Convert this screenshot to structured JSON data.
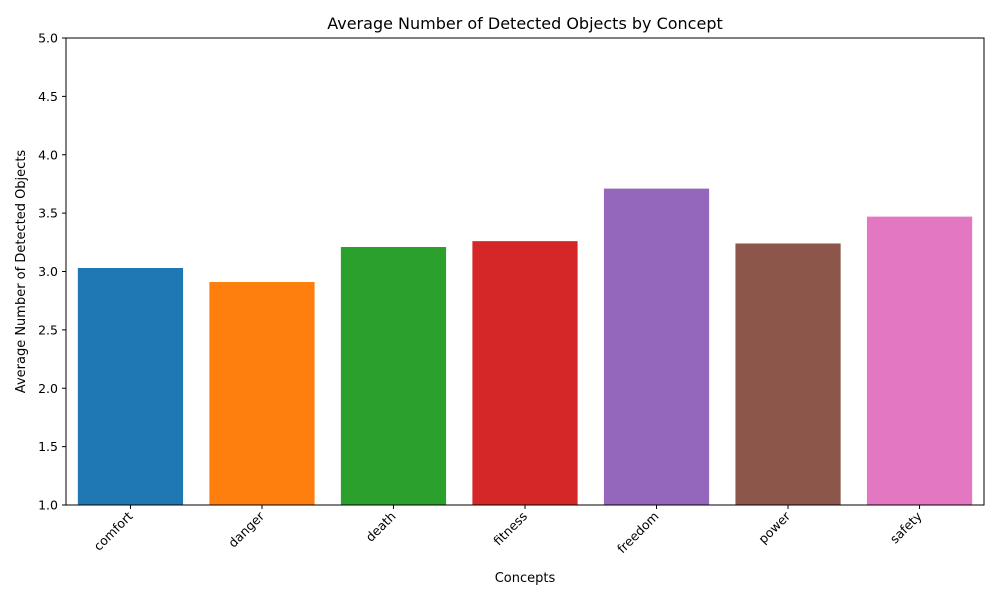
{
  "chart_data": {
    "type": "bar",
    "title": "Average Number of Detected Objects by Concept",
    "xlabel": "Concepts",
    "ylabel": "Average Number of Detected Objects",
    "ylim": [
      1.0,
      5.0
    ],
    "yticks": [
      "1.0",
      "1.5",
      "2.0",
      "2.5",
      "3.0",
      "3.5",
      "4.0",
      "4.5",
      "5.0"
    ],
    "grid": false,
    "legend": "none",
    "categories": [
      "comfort",
      "danger",
      "death",
      "fitness",
      "freedom",
      "power",
      "safety"
    ],
    "values": [
      3.03,
      2.91,
      3.21,
      3.26,
      3.71,
      3.24,
      3.47
    ],
    "colors": [
      "#1f77b4",
      "#ff7f0e",
      "#2ca02c",
      "#d62728",
      "#9467bd",
      "#8c564b",
      "#e377c2"
    ]
  }
}
